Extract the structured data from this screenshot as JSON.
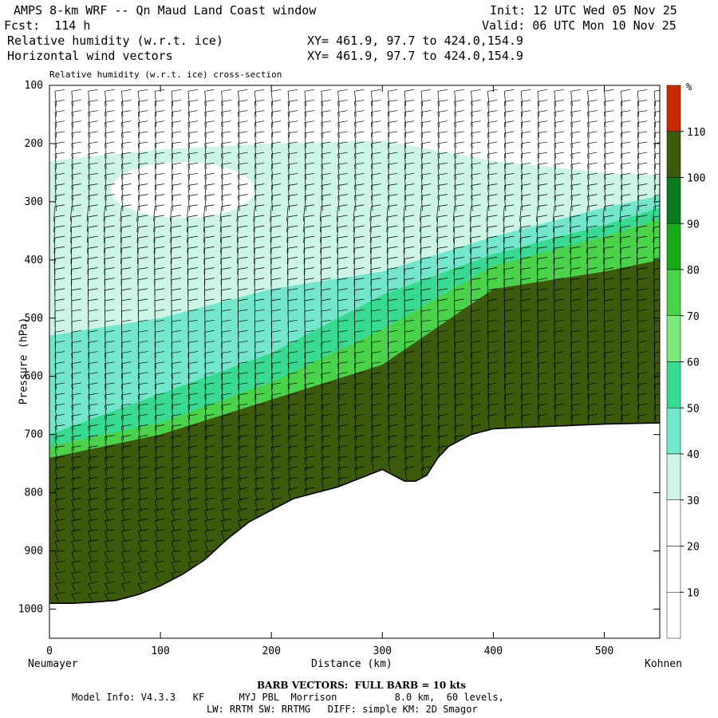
{
  "header": {
    "title": "AMPS 8-km WRF -- Qn Maud Land Coast window",
    "init": "Init: 12 UTC Wed 05 Nov 25",
    "fcst": "Fcst:  114 h",
    "valid": "Valid: 06 UTC Mon 10 Nov 25",
    "field1": "Relative humidity (w.r.t. ice)",
    "field2": "Horizontal wind vectors",
    "xy1": "XY= 461.9, 97.7 to 424.0,154.9",
    "xy2": "XY= 461.9, 97.7 to 424.0,154.9"
  },
  "footer": {
    "barb_note": "BARB VECTORS:  FULL BARB = 10 kts",
    "model_info": "Model Info: V4.3.3   KF      MYJ PBL  Morrison          8.0 km,  60 levels,",
    "model_info2": "LW: RRTM SW: RRTMG   DIFF: simple KM: 2D Smagor"
  },
  "chart_data": {
    "type": "heatmap",
    "title": "Relative humidity (w.r.t. ice) cross-section",
    "xlabel": "Distance (km)",
    "ylabel": "Pressure (hPa)",
    "x_start_label": "Neumayer",
    "x_end_label": "Kohnen",
    "xlim": [
      0,
      550
    ],
    "ylim": [
      1050,
      100
    ],
    "x_ticks": [
      0,
      100,
      200,
      300,
      400,
      500
    ],
    "y_ticks": [
      100,
      200,
      300,
      400,
      500,
      600,
      700,
      800,
      900,
      1000
    ],
    "colorbar_unit": "%",
    "colorbar_levels": [
      10,
      20,
      30,
      40,
      50,
      60,
      70,
      80,
      90,
      100,
      110
    ],
    "colorbar_colors": [
      "#ffffff",
      "#ffffff",
      "#ffffff",
      "#ccf5e6",
      "#73e6cc",
      "#38d990",
      "#7ae87a",
      "#4bd24b",
      "#1aab1a",
      "#0e7a1e",
      "#3c5a0c",
      "#c82a00"
    ],
    "terrain_surface_hPa": {
      "distance_km": [
        0,
        20,
        40,
        60,
        80,
        100,
        120,
        140,
        160,
        180,
        200,
        220,
        240,
        260,
        280,
        300,
        310,
        320,
        330,
        340,
        350,
        360,
        380,
        400,
        450,
        500,
        550
      ],
      "pressure_hPa": [
        990,
        990,
        988,
        985,
        975,
        960,
        940,
        915,
        880,
        850,
        830,
        810,
        800,
        790,
        775,
        760,
        770,
        780,
        780,
        770,
        740,
        720,
        700,
        690,
        686,
        682,
        680
      ]
    },
    "rh_bands": [
      {
        "rh": 30,
        "distance_km": [
          0,
          100,
          200,
          300,
          400,
          500,
          550
        ],
        "pressure_hPa": [
          230,
          210,
          200,
          195,
          230,
          250,
          255
        ]
      },
      {
        "rh": 40,
        "distance_km": [
          0,
          100,
          200,
          300,
          400,
          500,
          550
        ],
        "pressure_hPa": [
          530,
          500,
          450,
          420,
          360,
          310,
          290
        ]
      },
      {
        "rh": 50,
        "distance_km": [
          0,
          100,
          200,
          300,
          400,
          500,
          550
        ],
        "pressure_hPa": [
          700,
          630,
          560,
          460,
          390,
          340,
          310
        ]
      },
      {
        "rh": 70,
        "distance_km": [
          0,
          100,
          200,
          300,
          400,
          500,
          550
        ],
        "pressure_hPa": [
          720,
          680,
          610,
          520,
          410,
          360,
          330
        ]
      },
      {
        "rh": 100,
        "distance_km": [
          0,
          100,
          200,
          300,
          400,
          500,
          550
        ],
        "pressure_hPa": [
          740,
          700,
          640,
          580,
          450,
          420,
          400
        ]
      }
    ]
  }
}
